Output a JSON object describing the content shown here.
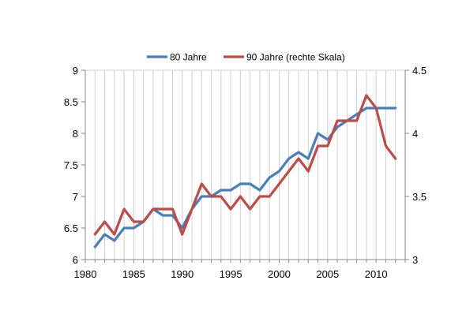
{
  "chart_data": {
    "type": "line",
    "title": "",
    "xlabel": "",
    "ylabel": "",
    "y2label": "",
    "x_ticks": [
      1980,
      1985,
      1990,
      1995,
      2000,
      2005,
      2010
    ],
    "xlim": [
      1980,
      2013
    ],
    "ylim": [
      6,
      9
    ],
    "y_ticks": [
      "6",
      "6.5",
      "7",
      "7.5",
      "8",
      "8.5",
      "9"
    ],
    "y2lim": [
      3,
      4.5
    ],
    "y2_ticks": [
      "3",
      "3.5",
      "4",
      "4.5"
    ],
    "grid": "vertical",
    "legend_position": "top",
    "series": [
      {
        "name": "80 Jahre",
        "axis": "left",
        "color": "#4a7ebb",
        "x": [
          1981,
          1982,
          1983,
          1984,
          1985,
          1986,
          1987,
          1988,
          1989,
          1990,
          1991,
          1992,
          1993,
          1994,
          1995,
          1996,
          1997,
          1998,
          1999,
          2000,
          2001,
          2002,
          2003,
          2004,
          2005,
          2006,
          2007,
          2008,
          2009,
          2010,
          2011,
          2012
        ],
        "values": [
          6.2,
          6.4,
          6.3,
          6.5,
          6.5,
          6.6,
          6.8,
          6.7,
          6.7,
          6.5,
          6.8,
          7.0,
          7.0,
          7.1,
          7.1,
          7.2,
          7.2,
          7.1,
          7.3,
          7.4,
          7.6,
          7.7,
          7.6,
          8.0,
          7.9,
          8.1,
          8.2,
          8.3,
          8.4,
          8.4,
          8.4,
          8.4
        ]
      },
      {
        "name": "90 Jahre (rechte Skala)",
        "axis": "right",
        "color": "#be4b48",
        "x": [
          1981,
          1982,
          1983,
          1984,
          1985,
          1986,
          1987,
          1988,
          1989,
          1990,
          1991,
          1992,
          1993,
          1994,
          1995,
          1996,
          1997,
          1998,
          1999,
          2000,
          2001,
          2002,
          2003,
          2004,
          2005,
          2006,
          2007,
          2008,
          2009,
          2010,
          2011,
          2012
        ],
        "values": [
          3.2,
          3.3,
          3.2,
          3.4,
          3.3,
          3.3,
          3.4,
          3.4,
          3.4,
          3.2,
          3.4,
          3.6,
          3.5,
          3.5,
          3.4,
          3.5,
          3.4,
          3.5,
          3.5,
          3.6,
          3.7,
          3.8,
          3.7,
          3.9,
          3.9,
          4.1,
          4.1,
          4.1,
          4.3,
          4.2,
          3.9,
          3.8
        ]
      }
    ]
  }
}
